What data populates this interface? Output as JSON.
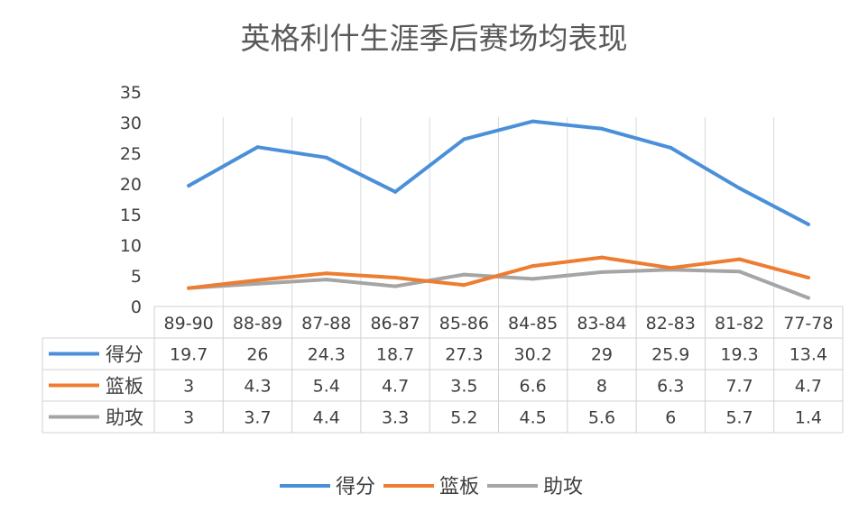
{
  "chart_data": {
    "type": "line",
    "title": "英格利什生涯季后赛场均表现",
    "categories": [
      "89-90",
      "88-89",
      "87-88",
      "86-87",
      "85-86",
      "84-85",
      "83-84",
      "82-83",
      "81-82",
      "77-78"
    ],
    "ylim": [
      0,
      35
    ],
    "yticks": [
      "0",
      "5",
      "10",
      "15",
      "20",
      "25",
      "30",
      "35"
    ],
    "grid": "vertical",
    "legend": "bottom",
    "data_table": true,
    "series": [
      {
        "name": "得分",
        "color": "#4a90d9",
        "values": [
          19.7,
          26,
          24.3,
          18.7,
          27.3,
          30.2,
          29,
          25.9,
          19.3,
          13.4
        ],
        "labels": [
          "19.7",
          "26",
          "24.3",
          "18.7",
          "27.3",
          "30.2",
          "29",
          "25.9",
          "19.3",
          "13.4"
        ]
      },
      {
        "name": "篮板",
        "color": "#ed7d31",
        "values": [
          3,
          4.3,
          5.4,
          4.7,
          3.5,
          6.6,
          8,
          6.3,
          7.7,
          4.7
        ],
        "labels": [
          "3",
          "4.3",
          "5.4",
          "4.7",
          "3.5",
          "6.6",
          "8",
          "6.3",
          "7.7",
          "4.7"
        ]
      },
      {
        "name": "助攻",
        "color": "#a5a5a5",
        "values": [
          3,
          3.7,
          4.4,
          3.3,
          5.2,
          4.5,
          5.6,
          6,
          5.7,
          1.4
        ],
        "labels": [
          "3",
          "3.7",
          "4.4",
          "3.3",
          "5.2",
          "4.5",
          "5.6",
          "6",
          "5.7",
          "1.4"
        ]
      }
    ]
  }
}
